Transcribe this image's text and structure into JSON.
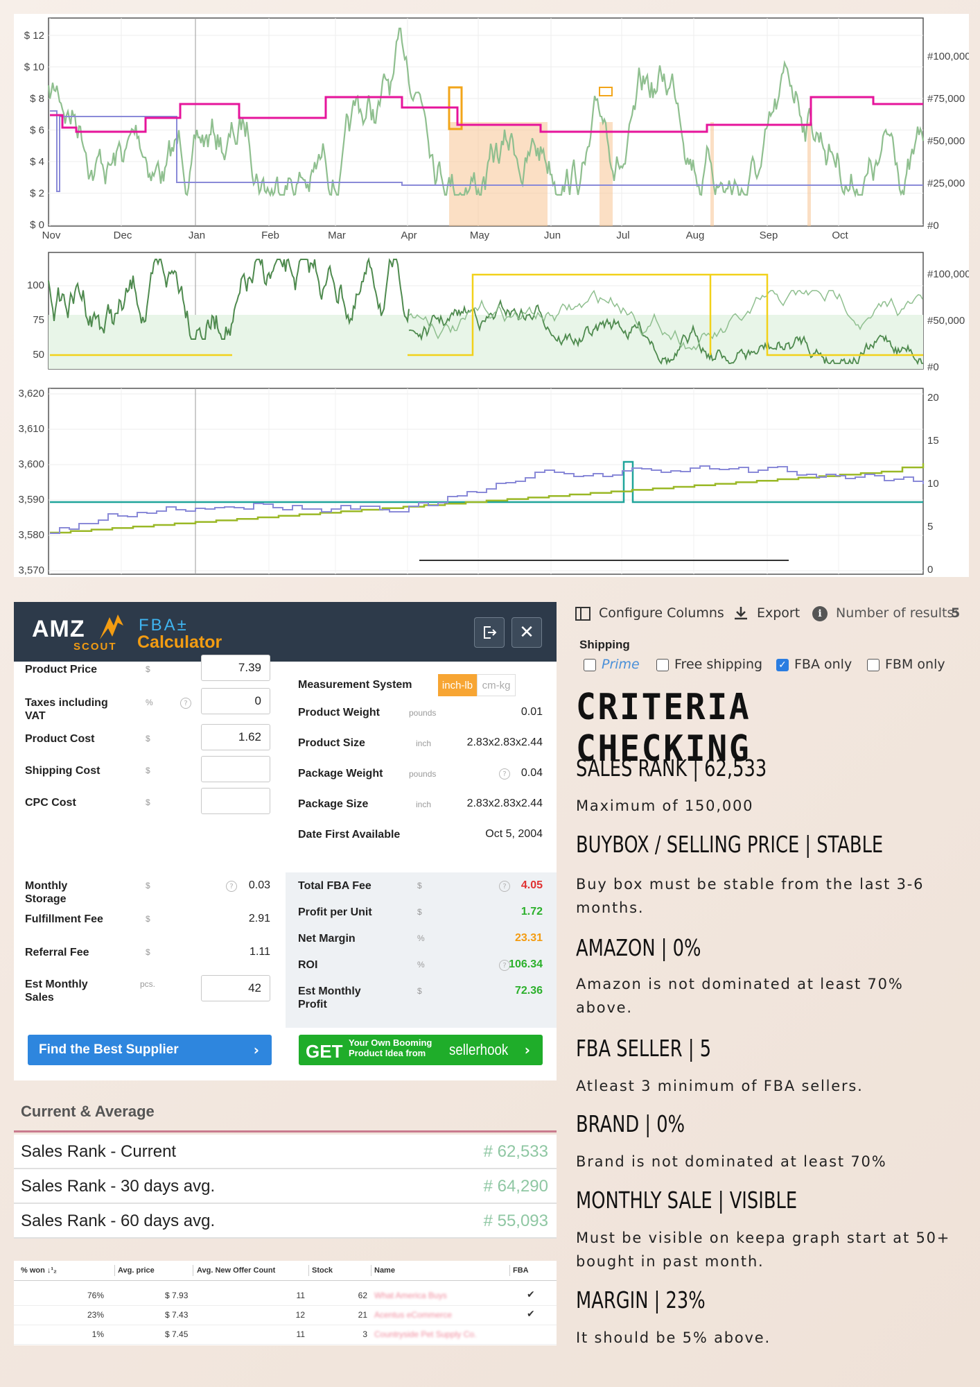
{
  "charts": {
    "top": {
      "y_ticks_left": [
        "$ 12",
        "$ 10",
        "$ 8",
        "$ 6",
        "$ 4",
        "$ 2",
        "$ 0"
      ],
      "y_ticks_right": [
        "#100,000",
        "#75,000",
        "#50,000",
        "#25,000",
        "#0"
      ],
      "months": [
        "Nov",
        "Dec",
        "Jan",
        "Feb",
        "Mar",
        "Apr",
        "May",
        "Jun",
        "Jul",
        "Aug",
        "Sep",
        "Oct"
      ]
    },
    "middle": {
      "y_ticks_left": [
        "100",
        "75",
        "50"
      ],
      "y_ticks_right": [
        "#100,000",
        "#50,000",
        "#0"
      ]
    },
    "bottom": {
      "y_ticks_left": [
        "3,620",
        "3,610",
        "3,600",
        "3,590",
        "3,580",
        "3,570"
      ],
      "y_ticks_right": [
        "20",
        "15",
        "10",
        "5",
        "0"
      ]
    },
    "colors": {
      "rank": "#4e8a4e",
      "rank_light": "#8fbf8f",
      "buybox": "#e6149b",
      "new": "#8a8ad8",
      "offer": "#f7c089",
      "yellow": "#f2d11a",
      "olive": "#9ab826",
      "teal": "#1fa49a"
    }
  },
  "calculator": {
    "logo": {
      "amz": "AMZ",
      "scout": "SCOUT",
      "fba": "FBA±",
      "calculator": "Calculator"
    },
    "left": [
      {
        "label": "Product Price",
        "unit": "$",
        "value": "7.39",
        "input": true
      },
      {
        "label": "Taxes including VAT",
        "unit": "%",
        "value": "0",
        "input": true,
        "help": true
      },
      {
        "label": "Product Cost",
        "unit": "$",
        "value": "1.62",
        "input": true
      },
      {
        "label": "Shipping Cost",
        "unit": "$",
        "value": "",
        "input": true
      },
      {
        "label": "CPC Cost",
        "unit": "$",
        "value": "",
        "input": true
      }
    ],
    "left2": [
      {
        "label": "Monthly Storage",
        "unit": "$",
        "value": "0.03",
        "help": true
      },
      {
        "label": "Fulfillment Fee",
        "unit": "$",
        "value": "2.91"
      },
      {
        "label": "Referral Fee",
        "unit": "$",
        "value": "1.11"
      },
      {
        "label": "Est Monthly Sales",
        "unit": "pcs.",
        "value": "42",
        "input": true
      }
    ],
    "right": {
      "measurement_label": "Measurement System",
      "unit_active": "inch-lb",
      "unit_inactive": "cm-kg",
      "rows": [
        {
          "label": "Product Weight",
          "unit": "pounds",
          "value": "0.01"
        },
        {
          "label": "Product Size",
          "unit": "inch",
          "value": "2.83x2.83x2.44"
        },
        {
          "label": "Package Weight",
          "unit": "pounds",
          "value": "0.04",
          "help": true
        },
        {
          "label": "Package Size",
          "unit": "inch",
          "value": "2.83x2.83x2.44"
        },
        {
          "label": "Date First Available",
          "unit": "",
          "value": "Oct 5, 2004"
        }
      ]
    },
    "results": [
      {
        "label": "Total FBA Fee",
        "unit": "$",
        "value": "4.05",
        "color": "#e03131",
        "help": true
      },
      {
        "label": "Profit per Unit",
        "unit": "$",
        "value": "1.72",
        "color": "#2bb02b"
      },
      {
        "label": "Net Margin",
        "unit": "%",
        "value": "23.31",
        "color": "#f39c12"
      },
      {
        "label": "ROI",
        "unit": "%",
        "value": "106.34",
        "color": "#2bb02b",
        "help": true
      },
      {
        "label": "Est Monthly Profit",
        "unit": "$",
        "value": "72.36",
        "color": "#2bb02b"
      }
    ],
    "supplier_button": "Find the Best Supplier",
    "get_button": {
      "get": "GET",
      "line1": "Your Own Booming",
      "line2": "Product Idea from",
      "brand": "sellerhook"
    }
  },
  "current_average": {
    "title": "Current & Average",
    "rows": [
      {
        "name": "Sales Rank - Current",
        "value": "# 62,533"
      },
      {
        "name": "Sales Rank - 30 days avg.",
        "value": "# 64,290"
      },
      {
        "name": "Sales Rank - 60 days avg.",
        "value": "# 55,093"
      }
    ]
  },
  "sellers": {
    "headers": [
      "% won ↓¹₂",
      "Avg. price",
      "Avg. New Offer Count",
      "Stock",
      "Name",
      "FBA"
    ],
    "rows": [
      {
        "won": "76%",
        "price": "$ 7.93",
        "offers": "11",
        "stock": "62",
        "name": "What America Buys",
        "fba": "✔"
      },
      {
        "won": "23%",
        "price": "$ 7.43",
        "offers": "12",
        "stock": "21",
        "name": "Acentus eCommerce",
        "fba": "✔"
      },
      {
        "won": "1%",
        "price": "$ 7.45",
        "offers": "11",
        "stock": "3",
        "name": "Countryside Pet Supply Co.",
        "fba": ""
      }
    ]
  },
  "toolbar": {
    "configure": "Configure Columns",
    "export": "Export",
    "results_label": "Number of results:",
    "results_count": "5",
    "shipping_label": "Shipping",
    "filters": [
      {
        "label": "Prime",
        "checked": false
      },
      {
        "label": "Free shipping",
        "checked": false
      },
      {
        "label": "FBA only",
        "checked": true
      },
      {
        "label": "FBM only",
        "checked": false
      }
    ]
  },
  "criteria": {
    "title": "CRITERIA CHECKING",
    "items": [
      {
        "heading": "SALES RANK  |  62,533",
        "text": "Maximum of 150,000"
      },
      {
        "heading": "BUYBOX / SELLING PRICE  |  STABLE",
        "text": "Buy box must be stable from the last 3-6 months."
      },
      {
        "heading": "AMAZON  |  0%",
        "text": "Amazon is not dominated at least 70% above."
      },
      {
        "heading": "FBA SELLER  |  5",
        "text": "Atleast 3 minimum of FBA sellers."
      },
      {
        "heading": "BRAND  |  0%",
        "text": "Brand is not dominated at least 70%"
      },
      {
        "heading": "MONTHLY SALE  |  VISIBLE",
        "text": "Must be visible on keepa graph start at 50+ bought in past month."
      },
      {
        "heading": "MARGIN  |  23%",
        "text": "It should be 5% above."
      }
    ]
  }
}
